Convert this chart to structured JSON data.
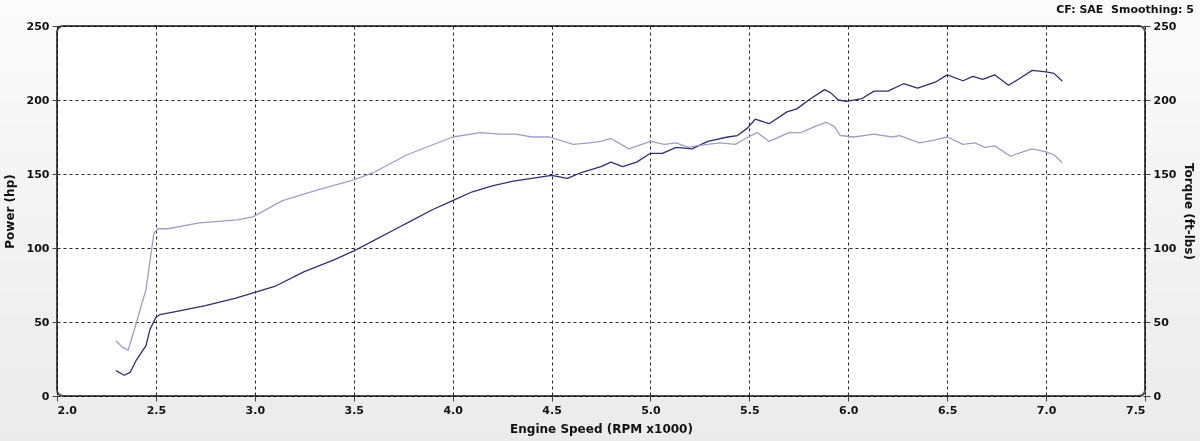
{
  "chart_data": {
    "type": "line",
    "xlabel": "Engine Speed (RPM x1000)",
    "ylabel": "Power (hp)",
    "y2label": "Torque (ft-lbs)",
    "annotations": [
      "CF: SAE  Smoothing: 5"
    ],
    "xlim": [
      2.0,
      7.5
    ],
    "xticks": [
      {
        "value": 2,
        "label": "2.0"
      },
      2.5,
      {
        "value": 3,
        "label": "3.0"
      },
      3.5,
      {
        "value": 4,
        "label": "4.0"
      },
      4.5,
      {
        "value": 5,
        "label": "5.0"
      },
      5.5,
      {
        "value": 6,
        "label": "6.0"
      },
      6.5,
      {
        "value": 7,
        "label": "7.0"
      },
      7.5
    ],
    "ylim": [
      0,
      250
    ],
    "yticks": [
      0,
      50,
      100,
      150,
      200,
      250
    ],
    "y2lim": [
      0,
      250
    ],
    "y2ticks": [
      0,
      50,
      100,
      150,
      200,
      250
    ],
    "grid": true,
    "line_style": "solid",
    "series": [
      {
        "color": "#2e2e78",
        "x": [
          2.3,
          2.34,
          2.37,
          2.4,
          2.45,
          2.47,
          2.5,
          2.52,
          2.6,
          2.75,
          2.9,
          3.0,
          3.1,
          3.25,
          3.4,
          3.5,
          3.6,
          3.7,
          3.8,
          3.9,
          4.0,
          4.1,
          4.2,
          4.3,
          4.4,
          4.5,
          4.58,
          4.65,
          4.75,
          4.8,
          4.86,
          4.93,
          5.0,
          5.06,
          5.13,
          5.21,
          5.29,
          5.39,
          5.44,
          5.49,
          5.53,
          5.6,
          5.69,
          5.74,
          5.8,
          5.88,
          5.91,
          5.95,
          5.99,
          6.07,
          6.13,
          6.2,
          6.28,
          6.35,
          6.44,
          6.5,
          6.58,
          6.63,
          6.68,
          6.74,
          6.81,
          6.86,
          6.93,
          7.0,
          7.04,
          7.08
        ],
        "values": [
          17,
          14,
          16,
          24,
          34,
          45,
          53,
          55,
          57,
          61,
          66,
          70,
          74,
          84,
          92,
          98,
          105,
          112,
          119,
          126,
          132,
          138,
          142,
          145,
          147,
          149,
          147,
          151,
          155,
          158,
          155,
          158,
          164,
          164,
          168,
          167,
          172,
          175,
          176,
          181,
          187,
          184,
          192,
          194,
          200,
          207,
          205,
          200,
          199,
          201,
          206,
          206,
          211,
          208,
          212,
          217,
          213,
          216,
          214,
          217,
          210,
          214,
          220,
          219,
          218,
          213
        ]
      },
      {
        "color": "#9e9ecb",
        "axis": "y2",
        "x": [
          2.3,
          2.33,
          2.36,
          2.4,
          2.45,
          2.49,
          2.51,
          2.56,
          2.72,
          2.91,
          2.99,
          3.14,
          3.31,
          3.5,
          3.6,
          3.77,
          4.0,
          4.14,
          4.24,
          4.32,
          4.4,
          4.49,
          4.61,
          4.69,
          4.75,
          4.8,
          4.89,
          5.0,
          5.07,
          5.13,
          5.19,
          5.23,
          5.35,
          5.43,
          5.48,
          5.54,
          5.6,
          5.7,
          5.76,
          5.83,
          5.89,
          5.93,
          5.96,
          6.03,
          6.13,
          6.22,
          6.26,
          6.36,
          6.44,
          6.5,
          6.58,
          6.64,
          6.69,
          6.74,
          6.82,
          6.86,
          6.93,
          7.0,
          7.04,
          7.08
        ],
        "values": [
          37,
          33,
          31,
          49,
          72,
          110,
          113,
          113,
          117,
          119,
          121,
          132,
          139,
          146,
          151,
          163,
          175,
          178,
          177,
          177,
          175,
          175,
          170,
          171,
          172,
          174,
          167,
          172,
          170,
          171,
          168,
          169,
          171,
          170,
          174,
          178,
          172,
          178,
          178,
          182,
          185,
          182,
          176,
          175,
          177,
          175,
          176,
          171,
          173,
          175,
          170,
          171,
          168,
          169,
          162,
          164,
          167,
          165,
          163,
          158
        ]
      }
    ]
  }
}
